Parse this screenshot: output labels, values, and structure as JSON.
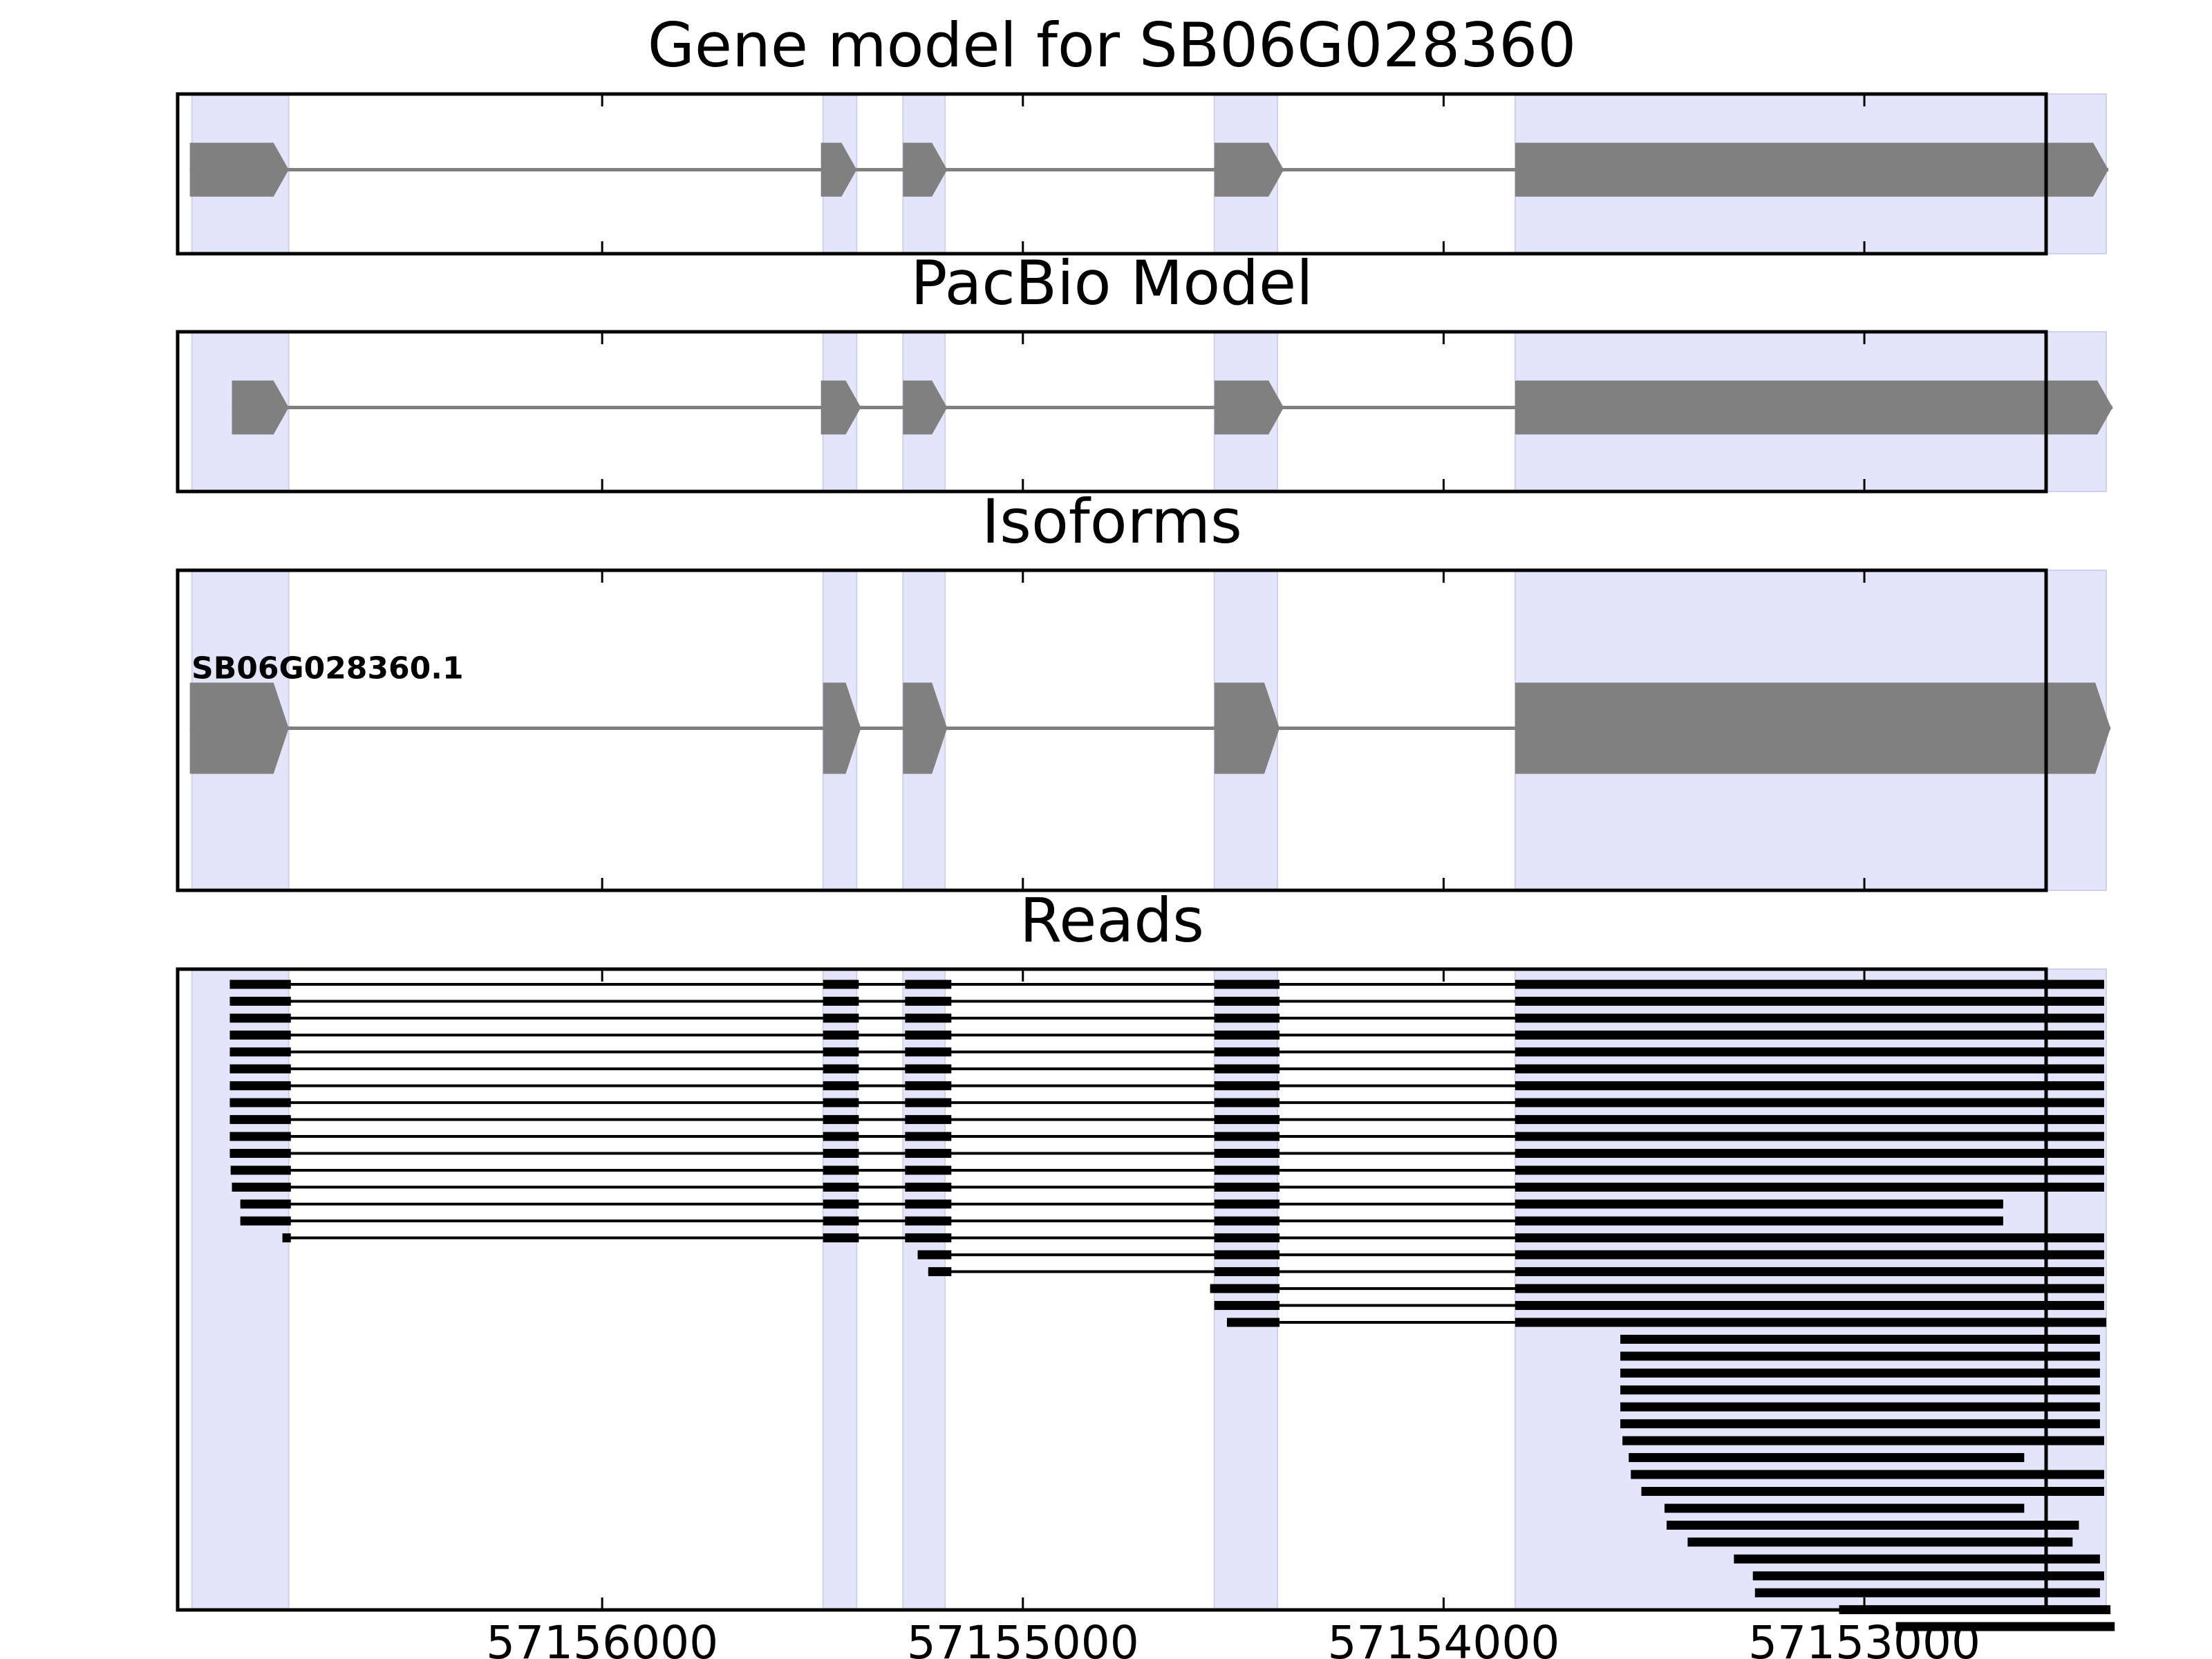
{
  "chart_data": {
    "type": "gene-model-tracks",
    "axis": {
      "reversed": true,
      "xlim": [
        57157009,
        57152568
      ],
      "ticks": [
        57156000,
        57155000,
        57154000,
        57153000
      ],
      "tick_labels": [
        "57156000",
        "57155000",
        "57154000",
        "57153000"
      ]
    },
    "highlight_color": "#e4e4fa",
    "feature_color": "#808080",
    "read_color": "#000000",
    "exon_regions": [
      [
        57156975,
        57156745
      ],
      [
        57155475,
        57155395
      ],
      [
        57155285,
        57155185
      ],
      [
        57154545,
        57154395
      ],
      [
        57153830,
        57152425
      ]
    ],
    "tracks": [
      {
        "title": "Gene model for SB06G028360",
        "strand": "-",
        "exons": [
          [
            57156980,
            57156745
          ],
          [
            57155480,
            57155395
          ],
          [
            57155285,
            57155180
          ],
          [
            57154545,
            57154380
          ],
          [
            57153830,
            57152420
          ]
        ]
      },
      {
        "title": "PacBio Model",
        "strand": "-",
        "exons": [
          [
            57156880,
            57156745
          ],
          [
            57155480,
            57155385
          ],
          [
            57155285,
            57155180
          ],
          [
            57154545,
            57154380
          ],
          [
            57153830,
            57152410
          ]
        ]
      },
      {
        "title": "Isoforms",
        "isoforms": [
          {
            "name": "SB06G028360.1",
            "strand": "-",
            "exons": [
              [
                57156980,
                57156745
              ],
              [
                57155475,
                57155385
              ],
              [
                57155285,
                57155180
              ],
              [
                57154545,
                57154390
              ],
              [
                57153830,
                57152415
              ]
            ]
          }
        ]
      },
      {
        "title": "Reads",
        "reads": [
          {
            "exons": [
              [
                57156885,
                57156740
              ],
              [
                57155475,
                57155390
              ],
              [
                57155280,
                57155170
              ],
              [
                57154545,
                57154390
              ],
              [
                57153830,
                57152430
              ]
            ]
          },
          {
            "exons": [
              [
                57156885,
                57156740
              ],
              [
                57155475,
                57155390
              ],
              [
                57155280,
                57155170
              ],
              [
                57154545,
                57154390
              ],
              [
                57153830,
                57152430
              ]
            ]
          },
          {
            "exons": [
              [
                57156885,
                57156740
              ],
              [
                57155475,
                57155390
              ],
              [
                57155280,
                57155170
              ],
              [
                57154545,
                57154390
              ],
              [
                57153830,
                57152430
              ]
            ]
          },
          {
            "exons": [
              [
                57156885,
                57156740
              ],
              [
                57155475,
                57155390
              ],
              [
                57155280,
                57155170
              ],
              [
                57154545,
                57154390
              ],
              [
                57153830,
                57152430
              ]
            ]
          },
          {
            "exons": [
              [
                57156885,
                57156740
              ],
              [
                57155475,
                57155390
              ],
              [
                57155280,
                57155170
              ],
              [
                57154545,
                57154390
              ],
              [
                57153830,
                57152430
              ]
            ]
          },
          {
            "exons": [
              [
                57156885,
                57156740
              ],
              [
                57155475,
                57155390
              ],
              [
                57155280,
                57155170
              ],
              [
                57154545,
                57154390
              ],
              [
                57153830,
                57152430
              ]
            ]
          },
          {
            "exons": [
              [
                57156885,
                57156740
              ],
              [
                57155475,
                57155390
              ],
              [
                57155280,
                57155170
              ],
              [
                57154545,
                57154390
              ],
              [
                57153830,
                57152430
              ]
            ]
          },
          {
            "exons": [
              [
                57156885,
                57156740
              ],
              [
                57155475,
                57155390
              ],
              [
                57155280,
                57155170
              ],
              [
                57154545,
                57154390
              ],
              [
                57153830,
                57152430
              ]
            ]
          },
          {
            "exons": [
              [
                57156885,
                57156740
              ],
              [
                57155475,
                57155390
              ],
              [
                57155280,
                57155170
              ],
              [
                57154545,
                57154390
              ],
              [
                57153830,
                57152430
              ]
            ]
          },
          {
            "exons": [
              [
                57156885,
                57156740
              ],
              [
                57155475,
                57155390
              ],
              [
                57155280,
                57155170
              ],
              [
                57154545,
                57154390
              ],
              [
                57153830,
                57152430
              ]
            ]
          },
          {
            "exons": [
              [
                57156885,
                57156740
              ],
              [
                57155475,
                57155390
              ],
              [
                57155280,
                57155170
              ],
              [
                57154545,
                57154390
              ],
              [
                57153830,
                57152430
              ]
            ]
          },
          {
            "exons": [
              [
                57156883,
                57156740
              ],
              [
                57155475,
                57155390
              ],
              [
                57155280,
                57155170
              ],
              [
                57154545,
                57154390
              ],
              [
                57153830,
                57152430
              ]
            ]
          },
          {
            "exons": [
              [
                57156880,
                57156740
              ],
              [
                57155475,
                57155390
              ],
              [
                57155280,
                57155170
              ],
              [
                57154545,
                57154390
              ],
              [
                57153830,
                57152430
              ]
            ]
          },
          {
            "exons": [
              [
                57156860,
                57156740
              ],
              [
                57155475,
                57155390
              ],
              [
                57155280,
                57155170
              ],
              [
                57154545,
                57154390
              ],
              [
                57153830,
                57152670
              ]
            ]
          },
          {
            "exons": [
              [
                57156860,
                57156740
              ],
              [
                57155475,
                57155390
              ],
              [
                57155280,
                57155170
              ],
              [
                57154545,
                57154390
              ],
              [
                57153830,
                57152670
              ]
            ]
          },
          {
            "exons": [
              [
                57156760,
                57156740
              ],
              [
                57155475,
                57155390
              ],
              [
                57155280,
                57155170
              ],
              [
                57154545,
                57154390
              ],
              [
                57153830,
                57152430
              ]
            ]
          },
          {
            "exons": [
              [
                57155250,
                57155170
              ],
              [
                57154545,
                57154390
              ],
              [
                57153830,
                57152430
              ]
            ]
          },
          {
            "exons": [
              [
                57155225,
                57155170
              ],
              [
                57154545,
                57154390
              ],
              [
                57153830,
                57152430
              ]
            ]
          },
          {
            "exons": [
              [
                57154555,
                57154390
              ],
              [
                57153830,
                57152430
              ]
            ]
          },
          {
            "exons": [
              [
                57154545,
                57154390
              ],
              [
                57153830,
                57152430
              ]
            ]
          },
          {
            "exons": [
              [
                57154515,
                57154390
              ],
              [
                57153830,
                57152425
              ]
            ]
          },
          {
            "exons": [
              [
                57153580,
                57152440
              ]
            ]
          },
          {
            "exons": [
              [
                57153580,
                57152440
              ]
            ]
          },
          {
            "exons": [
              [
                57153580,
                57152440
              ]
            ]
          },
          {
            "exons": [
              [
                57153580,
                57152440
              ]
            ]
          },
          {
            "exons": [
              [
                57153580,
                57152440
              ]
            ]
          },
          {
            "exons": [
              [
                57153580,
                57152440
              ]
            ]
          },
          {
            "exons": [
              [
                57153575,
                57152430
              ]
            ]
          },
          {
            "exons": [
              [
                57153560,
                57152620
              ]
            ]
          },
          {
            "exons": [
              [
                57153555,
                57152430
              ]
            ]
          },
          {
            "exons": [
              [
                57153530,
                57152430
              ]
            ]
          },
          {
            "exons": [
              [
                57153475,
                57152620
              ]
            ]
          },
          {
            "exons": [
              [
                57153470,
                57152490
              ]
            ]
          },
          {
            "exons": [
              [
                57153420,
                57152505
              ]
            ]
          },
          {
            "exons": [
              [
                57153310,
                57152440
              ]
            ]
          },
          {
            "exons": [
              [
                57153265,
                57152430
              ]
            ]
          },
          {
            "exons": [
              [
                57153260,
                57152440
              ]
            ]
          },
          {
            "exons": [
              [
                57153060,
                57152415
              ]
            ]
          },
          {
            "exons": [
              [
                57152925,
                57152405
              ]
            ]
          }
        ]
      }
    ]
  }
}
